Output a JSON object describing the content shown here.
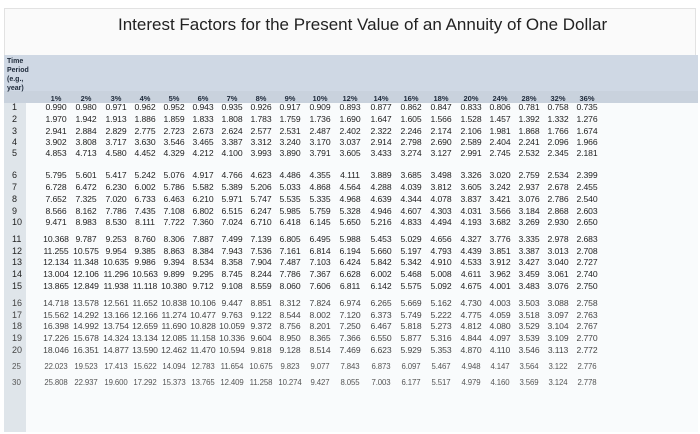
{
  "title": "Interest Factors for the Present Value of an Annuity of One Dollar",
  "header": {
    "period_lines": [
      "Time",
      "Period",
      "(e.g.,",
      "year)"
    ],
    "rates": [
      "1%",
      "2%",
      "3%",
      "4%",
      "5%",
      "6%",
      "7%",
      "8%",
      "9%",
      "10%",
      "12%",
      "14%",
      "16%",
      "18%",
      "20%",
      "24%",
      "28%",
      "32%",
      "36%"
    ]
  },
  "rows": [
    {
      "period": "1",
      "values": [
        "0.990",
        "0.980",
        "0.971",
        "0.962",
        "0.952",
        "0.943",
        "0.935",
        "0.926",
        "0.917",
        "0.909",
        "0.893",
        "0.877",
        "0.862",
        "0.847",
        "0.833",
        "0.806",
        "0.781",
        "0.758",
        "0.735"
      ]
    },
    {
      "period": "2",
      "values": [
        "1.970",
        "1.942",
        "1.913",
        "1.886",
        "1.859",
        "1.833",
        "1.808",
        "1.783",
        "1.759",
        "1.736",
        "1.690",
        "1.647",
        "1.605",
        "1.566",
        "1.528",
        "1.457",
        "1.392",
        "1.332",
        "1.276"
      ]
    },
    {
      "period": "3",
      "values": [
        "2.941",
        "2.884",
        "2.829",
        "2.775",
        "2.723",
        "2.673",
        "2.624",
        "2.577",
        "2.531",
        "2.487",
        "2.402",
        "2.322",
        "2.246",
        "2.174",
        "2.106",
        "1.981",
        "1.868",
        "1.766",
        "1.674"
      ]
    },
    {
      "period": "4",
      "values": [
        "3.902",
        "3.808",
        "3.717",
        "3.630",
        "3.546",
        "3.465",
        "3.387",
        "3.312",
        "3.240",
        "3.170",
        "3.037",
        "2.914",
        "2.798",
        "2.690",
        "2.589",
        "2.404",
        "2.241",
        "2.096",
        "1.966"
      ]
    },
    {
      "period": "5",
      "values": [
        "4.853",
        "4.713",
        "4.580",
        "4.452",
        "4.329",
        "4.212",
        "4.100",
        "3.993",
        "3.890",
        "3.791",
        "3.605",
        "3.433",
        "3.274",
        "3.127",
        "2.991",
        "2.745",
        "2.532",
        "2.345",
        "2.181"
      ]
    },
    {
      "period": "6",
      "values": [
        "5.795",
        "5.601",
        "5.417",
        "5.242",
        "5.076",
        "4.917",
        "4.766",
        "4.623",
        "4.486",
        "4.355",
        "4.111",
        "3.889",
        "3.685",
        "3.498",
        "3.326",
        "3.020",
        "2.759",
        "2.534",
        "2.399"
      ]
    },
    {
      "period": "7",
      "values": [
        "6.728",
        "6.472",
        "6.230",
        "6.002",
        "5.786",
        "5.582",
        "5.389",
        "5.206",
        "5.033",
        "4.868",
        "4.564",
        "4.288",
        "4.039",
        "3.812",
        "3.605",
        "3.242",
        "2.937",
        "2.678",
        "2.455"
      ]
    },
    {
      "period": "8",
      "values": [
        "7.652",
        "7.325",
        "7.020",
        "6.733",
        "6.463",
        "6.210",
        "5.971",
        "5.747",
        "5.535",
        "5.335",
        "4.968",
        "4.639",
        "4.344",
        "4.078",
        "3.837",
        "3.421",
        "3.076",
        "2.786",
        "2.540"
      ]
    },
    {
      "period": "9",
      "values": [
        "8.566",
        "8.162",
        "7.786",
        "7.435",
        "7.108",
        "6.802",
        "6.515",
        "6.247",
        "5.985",
        "5.759",
        "5.328",
        "4.946",
        "4.607",
        "4.303",
        "4.031",
        "3.566",
        "3.184",
        "2.868",
        "2.603"
      ]
    },
    {
      "period": "10",
      "values": [
        "9.471",
        "8.983",
        "8.530",
        "8.111",
        "7.722",
        "7.360",
        "7.024",
        "6.710",
        "6.418",
        "6.145",
        "5.650",
        "5.216",
        "4.833",
        "4.494",
        "4.193",
        "3.682",
        "3.269",
        "2.930",
        "2.650"
      ]
    },
    {
      "period": "11",
      "values": [
        "10.368",
        "9.787",
        "9.253",
        "8.760",
        "8.306",
        "7.887",
        "7.499",
        "7.139",
        "6.805",
        "6.495",
        "5.988",
        "5.453",
        "5.029",
        "4.656",
        "4.327",
        "3.776",
        "3.335",
        "2.978",
        "2.683"
      ]
    },
    {
      "period": "12",
      "values": [
        "11.255",
        "10.575",
        "9.954",
        "9.385",
        "8.863",
        "8.384",
        "7.943",
        "7.536",
        "7.161",
        "6.814",
        "6.194",
        "5.660",
        "5.197",
        "4.793",
        "4.439",
        "3.851",
        "3.387",
        "3.013",
        "2.708"
      ]
    },
    {
      "period": "13",
      "values": [
        "12.134",
        "11.348",
        "10.635",
        "9.986",
        "9.394",
        "8.534",
        "8.358",
        "7.904",
        "7.487",
        "7.103",
        "6.424",
        "5.842",
        "5.342",
        "4.910",
        "4.533",
        "3.912",
        "3.427",
        "3.040",
        "2.727"
      ]
    },
    {
      "period": "14",
      "values": [
        "13.004",
        "12.106",
        "11.296",
        "10.563",
        "9.899",
        "9.295",
        "8.745",
        "8.244",
        "7.786",
        "7.367",
        "6.628",
        "6.002",
        "5.468",
        "5.008",
        "4.611",
        "3.962",
        "3.459",
        "3.061",
        "2.740"
      ]
    },
    {
      "period": "15",
      "values": [
        "13.865",
        "12.849",
        "11.938",
        "11.118",
        "10.380",
        "9.712",
        "9.108",
        "8.559",
        "8.060",
        "7.606",
        "6.811",
        "6.142",
        "5.575",
        "5.092",
        "4.675",
        "4.001",
        "3.483",
        "3.076",
        "2.750"
      ]
    },
    {
      "period": "16",
      "values": [
        "14.718",
        "13.578",
        "12.561",
        "11.652",
        "10.838",
        "10.106",
        "9.447",
        "8.851",
        "8.312",
        "7.824",
        "6.974",
        "6.265",
        "5.669",
        "5.162",
        "4.730",
        "4.003",
        "3.503",
        "3.088",
        "2.758"
      ]
    },
    {
      "period": "17",
      "values": [
        "15.562",
        "14.292",
        "13.166",
        "12.166",
        "11.274",
        "10.477",
        "9.763",
        "9.122",
        "8.544",
        "8.002",
        "7.120",
        "6.373",
        "5.749",
        "5.222",
        "4.775",
        "4.059",
        "3.518",
        "3.097",
        "2.763"
      ]
    },
    {
      "period": "18",
      "values": [
        "16.398",
        "14.992",
        "13.754",
        "12.659",
        "11.690",
        "10.828",
        "10.059",
        "9.372",
        "8.756",
        "8.201",
        "7.250",
        "6.467",
        "5.818",
        "5.273",
        "4.812",
        "4.080",
        "3.529",
        "3.104",
        "2.767"
      ]
    },
    {
      "period": "19",
      "values": [
        "17.226",
        "15.678",
        "14.324",
        "13.134",
        "12.085",
        "11.158",
        "10.336",
        "9.604",
        "8.950",
        "8.365",
        "7.366",
        "6.550",
        "5.877",
        "5.316",
        "4.844",
        "4.097",
        "3.539",
        "3.109",
        "2.770"
      ]
    },
    {
      "period": "20",
      "values": [
        "18.046",
        "16.351",
        "14.877",
        "13.590",
        "12.462",
        "11.470",
        "10.594",
        "9.818",
        "9.128",
        "8.514",
        "7.469",
        "6.623",
        "5.929",
        "5.353",
        "4.870",
        "4.110",
        "3.546",
        "3.113",
        "2.772"
      ]
    },
    {
      "period": "25",
      "values": [
        "22.023",
        "19.523",
        "17.413",
        "15.622",
        "14.094",
        "12.783",
        "11.654",
        "10.675",
        "9.823",
        "9.077",
        "7.843",
        "6.873",
        "6.097",
        "5.467",
        "4.948",
        "4.147",
        "3.564",
        "3.122",
        "2.776"
      ]
    },
    {
      "period": "30",
      "values": [
        "25.808",
        "22.937",
        "19.600",
        "17.292",
        "15.373",
        "13.765",
        "12.409",
        "11.258",
        "10.274",
        "9.427",
        "8.055",
        "7.003",
        "6.177",
        "5.517",
        "4.979",
        "4.160",
        "3.569",
        "3.124",
        "2.778"
      ]
    }
  ]
}
